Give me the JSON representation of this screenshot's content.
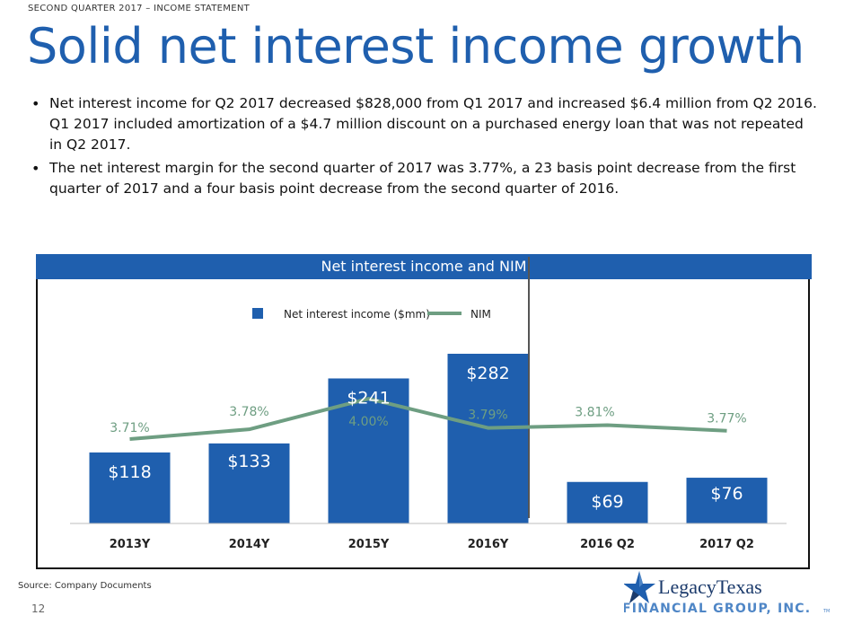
{
  "header": {
    "eyebrow": "SECOND QUARTER 2017 – INCOME STATEMENT",
    "title": "Solid net interest income growth"
  },
  "bullets": [
    "Net interest income for Q2 2017 decreased $828,000 from Q1 2017 and increased $6.4 million from Q2 2016. Q1 2017 included amortization of a $4.7 million discount on a purchased energy loan that was not repeated in Q2 2017.",
    "The net interest margin for the second quarter of 2017 was 3.77%, a 23 basis point decrease from the first quarter of 2017 and a four basis point decrease from the second quarter of 2016."
  ],
  "chart_data": {
    "type": "bar",
    "title": "Net interest income and NIM",
    "categories": [
      "2013Y",
      "2014Y",
      "2015Y",
      "2016Y",
      "2016 Q2",
      "2017 Q2"
    ],
    "series": [
      {
        "name": "Net interest income ($mm)",
        "kind": "bar",
        "color": "#1f5fae",
        "values": [
          118,
          133,
          241,
          282,
          69,
          76
        ],
        "labels": [
          "$118",
          "$133",
          "$241",
          "$282",
          "$69",
          "$76"
        ]
      },
      {
        "name": "NIM",
        "kind": "line",
        "color": "#6e9e82",
        "values": [
          3.71,
          3.78,
          4.0,
          3.79,
          3.81,
          3.77
        ],
        "labels": [
          "3.71%",
          "3.78%",
          "4.00%",
          "3.79%",
          "3.81%",
          "3.77%"
        ]
      }
    ],
    "legend_position": "top-center",
    "divider_after_category": "2016Y",
    "grid": false
  },
  "footer": {
    "source": "Source: Company Documents",
    "page_number": "12"
  },
  "logo": {
    "name_part1": "Legacy",
    "name_part2": "Texas",
    "subline": "FINANCIAL GROUP, INC.",
    "tm": "TM",
    "colors": {
      "navy": "#1b3a6b",
      "blue": "#1f5fae",
      "light_blue": "#4f86c6"
    }
  }
}
